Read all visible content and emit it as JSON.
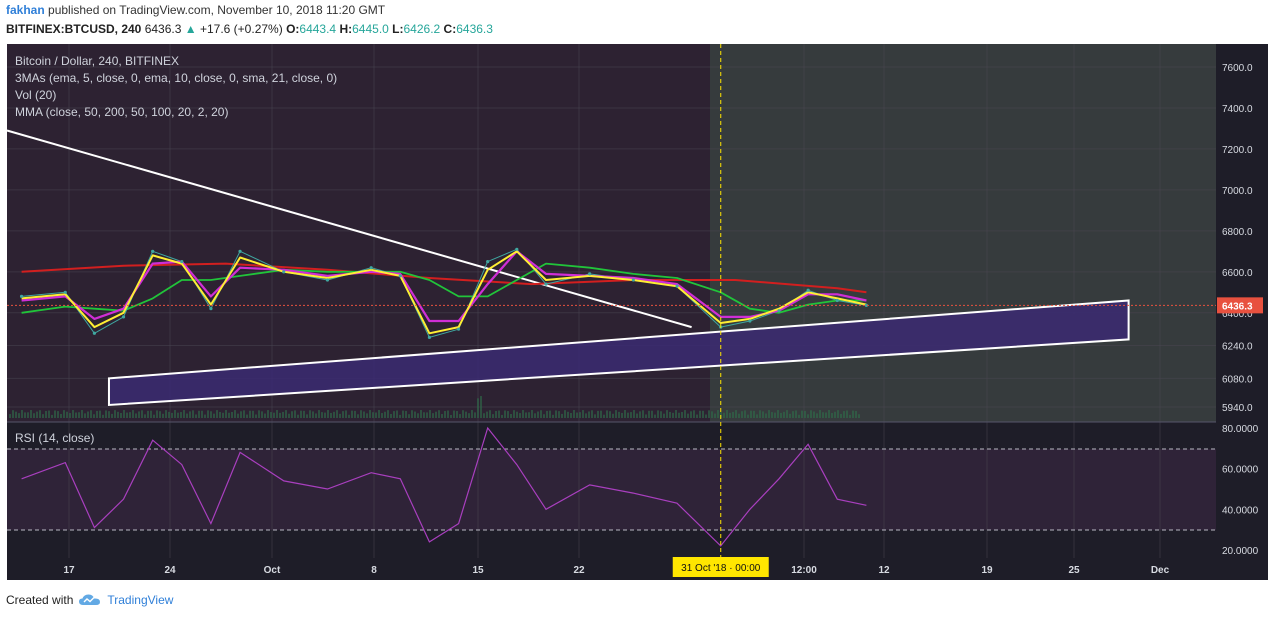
{
  "header": {
    "user": "fakhan",
    "published_text": "published on TradingView.com, November 10, 2018 11:20 GMT",
    "symbol": "BITFINEX:BTCUSD, 240",
    "last": "6436.3",
    "change": "+17.6 (+0.27%)",
    "o_label": "O:",
    "o_val": "6443.4",
    "h_label": "H:",
    "h_val": "6445.0",
    "l_label": "L:",
    "l_val": "6426.2",
    "c_label": "C:",
    "c_val": "6436.3"
  },
  "legend": {
    "title": "Bitcoin / Dollar, 240, BITFINEX",
    "ma3": "3MAs (ema, 5, close, 0, ema, 10, close, 0, sma, 21, close, 0)",
    "vol": "Vol (20)",
    "mma": "MMA (close, 50, 200, 50, 100, 20, 2, 20)",
    "rsi": "RSI (14, close)"
  },
  "price_axis": {
    "ticks": [
      "7600.0",
      "7400.0",
      "7200.0",
      "7000.0",
      "6800.0",
      "6600.0",
      "6400.0",
      "6240.0",
      "6080.0",
      "5940.0"
    ],
    "last_price_label": "6436.3"
  },
  "rsi_axis": {
    "ticks": [
      "80.0000",
      "60.0000",
      "40.0000",
      "20.0000"
    ]
  },
  "time_axis": {
    "ticks": [
      "17",
      "24",
      "Oct",
      "8",
      "15",
      "22",
      "12:00",
      "12",
      "19",
      "25",
      "Dec"
    ],
    "cursor_label": "31 Oct '18 · 00:00"
  },
  "footer": {
    "created_with": "Created with",
    "brand": "TradingView"
  },
  "colors": {
    "bg_left": "#2d2232",
    "bg_right": "#363b3d",
    "price_label_bg": "#e8513f",
    "ema5": "#ffee33",
    "ema10": "#d02ed6",
    "sma21": "#21c43a",
    "mma_red": "#d21f1f",
    "rsi": "#a93fbf",
    "channel_fill": "#3b2a72",
    "cursor_label_bg": "#ffe600"
  },
  "chart_data": {
    "type": "line",
    "title": "Bitcoin / Dollar, 240, BITFINEX",
    "x_range": [
      "2018-09-12",
      "2018-12-04"
    ],
    "ylim": [
      5900,
      7700
    ],
    "rsi_ylim": [
      15,
      82
    ],
    "series": [
      {
        "name": "BTCUSD",
        "x": [
          "2018-09-13",
          "2018-09-16",
          "2018-09-18",
          "2018-09-20",
          "2018-09-22",
          "2018-09-24",
          "2018-09-26",
          "2018-09-28",
          "2018-10-01",
          "2018-10-04",
          "2018-10-07",
          "2018-10-09",
          "2018-10-11",
          "2018-10-13",
          "2018-10-15",
          "2018-10-17",
          "2018-10-19",
          "2018-10-22",
          "2018-10-25",
          "2018-10-28",
          "2018-10-31",
          "2018-11-02",
          "2018-11-04",
          "2018-11-06",
          "2018-11-08",
          "2018-11-10"
        ],
        "values": [
          6480,
          6500,
          6300,
          6380,
          6700,
          6650,
          6420,
          6700,
          6600,
          6560,
          6620,
          6580,
          6280,
          6320,
          6650,
          6710,
          6540,
          6590,
          6560,
          6530,
          6330,
          6360,
          6410,
          6510,
          6460,
          6436
        ]
      },
      {
        "name": "EMA 5",
        "x": [
          "2018-09-13",
          "2018-09-16",
          "2018-09-18",
          "2018-09-20",
          "2018-09-22",
          "2018-09-24",
          "2018-09-26",
          "2018-09-28",
          "2018-10-01",
          "2018-10-04",
          "2018-10-07",
          "2018-10-09",
          "2018-10-11",
          "2018-10-13",
          "2018-10-15",
          "2018-10-17",
          "2018-10-19",
          "2018-10-22",
          "2018-10-25",
          "2018-10-28",
          "2018-10-31",
          "2018-11-02",
          "2018-11-04",
          "2018-11-06",
          "2018-11-08",
          "2018-11-10"
        ],
        "values": [
          6470,
          6490,
          6330,
          6400,
          6680,
          6640,
          6440,
          6670,
          6600,
          6570,
          6610,
          6580,
          6300,
          6330,
          6610,
          6700,
          6560,
          6580,
          6560,
          6530,
          6350,
          6370,
          6420,
          6500,
          6470,
          6440
        ]
      },
      {
        "name": "EMA 10",
        "x": [
          "2018-09-13",
          "2018-09-16",
          "2018-09-18",
          "2018-09-20",
          "2018-09-22",
          "2018-09-24",
          "2018-09-26",
          "2018-09-28",
          "2018-10-01",
          "2018-10-04",
          "2018-10-07",
          "2018-10-09",
          "2018-10-11",
          "2018-10-13",
          "2018-10-15",
          "2018-10-17",
          "2018-10-19",
          "2018-10-22",
          "2018-10-25",
          "2018-10-28",
          "2018-10-31",
          "2018-11-02",
          "2018-11-04",
          "2018-11-06",
          "2018-11-08",
          "2018-11-10"
        ],
        "values": [
          6460,
          6480,
          6370,
          6420,
          6640,
          6650,
          6480,
          6620,
          6610,
          6580,
          6600,
          6590,
          6360,
          6360,
          6540,
          6700,
          6590,
          6580,
          6570,
          6540,
          6380,
          6380,
          6410,
          6490,
          6490,
          6460
        ]
      },
      {
        "name": "SMA 21",
        "x": [
          "2018-09-13",
          "2018-09-16",
          "2018-09-18",
          "2018-09-20",
          "2018-09-22",
          "2018-09-24",
          "2018-09-26",
          "2018-09-28",
          "2018-10-01",
          "2018-10-04",
          "2018-10-07",
          "2018-10-09",
          "2018-10-11",
          "2018-10-13",
          "2018-10-15",
          "2018-10-17",
          "2018-10-19",
          "2018-10-22",
          "2018-10-25",
          "2018-10-28",
          "2018-10-31",
          "2018-11-02",
          "2018-11-04",
          "2018-11-06",
          "2018-11-08",
          "2018-11-10"
        ],
        "values": [
          6400,
          6430,
          6420,
          6410,
          6470,
          6560,
          6560,
          6580,
          6610,
          6600,
          6600,
          6600,
          6560,
          6480,
          6480,
          6560,
          6640,
          6620,
          6590,
          6570,
          6500,
          6420,
          6400,
          6440,
          6460,
          6460
        ]
      },
      {
        "name": "MMA 200",
        "x": [
          "2018-09-13",
          "2018-09-20",
          "2018-09-27",
          "2018-10-04",
          "2018-10-11",
          "2018-10-18",
          "2018-10-25",
          "2018-11-01",
          "2018-11-08",
          "2018-11-10"
        ],
        "values": [
          6600,
          6630,
          6640,
          6610,
          6570,
          6540,
          6560,
          6560,
          6520,
          6500
        ]
      }
    ],
    "rsi": {
      "name": "RSI (14, close)",
      "x": [
        "2018-09-13",
        "2018-09-16",
        "2018-09-18",
        "2018-09-20",
        "2018-09-22",
        "2018-09-24",
        "2018-09-26",
        "2018-09-28",
        "2018-10-01",
        "2018-10-04",
        "2018-10-07",
        "2018-10-09",
        "2018-10-11",
        "2018-10-13",
        "2018-10-15",
        "2018-10-17",
        "2018-10-19",
        "2018-10-22",
        "2018-10-25",
        "2018-10-28",
        "2018-10-31",
        "2018-11-02",
        "2018-11-04",
        "2018-11-06",
        "2018-11-08",
        "2018-11-10"
      ],
      "values": [
        55,
        63,
        31,
        45,
        74,
        62,
        33,
        68,
        54,
        50,
        58,
        55,
        24,
        33,
        80,
        62,
        40,
        52,
        48,
        43,
        22,
        40,
        55,
        72,
        45,
        42
      ],
      "overbought": 70,
      "oversold": 30
    },
    "annotations": [
      {
        "type": "trendline",
        "from": {
          "x": "2018-09-12",
          "y": 7290
        },
        "to": {
          "x": "2018-10-29",
          "y": 6330
        }
      },
      {
        "type": "channel",
        "lower": [
          {
            "x": "2018-09-19",
            "y": 5950
          },
          {
            "x": "2018-11-28",
            "y": 6270
          }
        ],
        "upper": [
          {
            "x": "2018-09-19",
            "y": 6080
          },
          {
            "x": "2018-11-28",
            "y": 6460
          }
        ]
      },
      {
        "type": "vertical_line",
        "x": "2018-10-31"
      }
    ]
  }
}
